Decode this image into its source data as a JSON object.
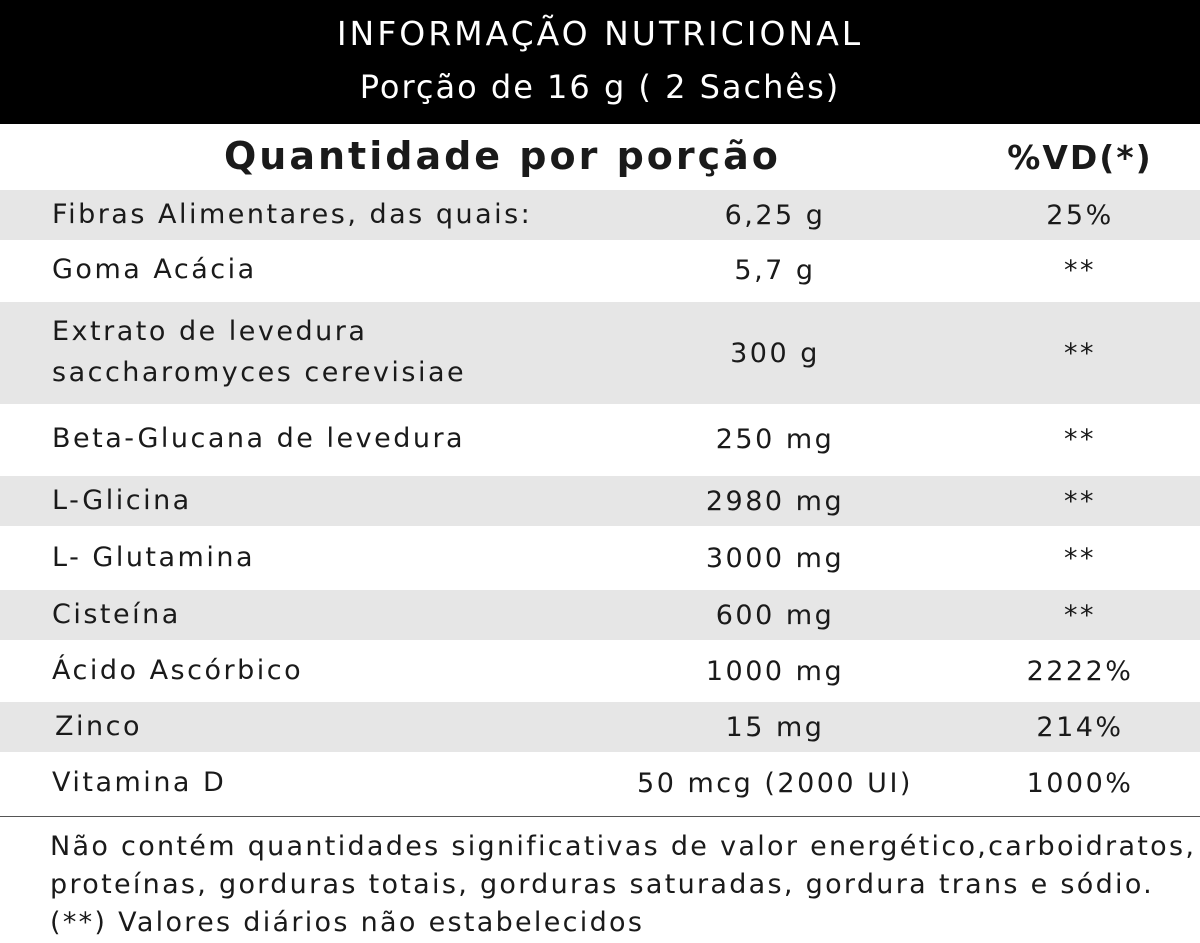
{
  "header": {
    "title": "INFORMAÇÃO NUTRICIONAL",
    "serving": "Porção de 16 g ( 2 Sachês)"
  },
  "columns": {
    "quantity": "Quantidade por porção",
    "daily_value": "%VD(*)"
  },
  "rows": [
    {
      "name": "Fibras Alimentares, das quais:",
      "amount": "6,25 g",
      "dv": "25%"
    },
    {
      "name": "Goma Acácia",
      "amount": "5,7 g",
      "dv": "**"
    },
    {
      "name": "Extrato de levedura saccharomyces cerevisiae",
      "name_line1": "Extrato de levedura",
      "name_line2": "saccharomyces cerevisiae",
      "amount": "300 g",
      "dv": "**"
    },
    {
      "name": "Beta-Glucana de levedura",
      "amount": "250 mg",
      "dv": "**"
    },
    {
      "name": "L-Glicina",
      "amount": "2980 mg",
      "dv": "**"
    },
    {
      "name": "L- Glutamina",
      "amount": "3000 mg",
      "dv": "**"
    },
    {
      "name": "Cisteína",
      "amount": "600 mg",
      "dv": "**"
    },
    {
      "name": "Ácido Ascórbico",
      "amount": "1000 mg",
      "dv": "2222%"
    },
    {
      "name": "Zinco",
      "amount": "15 mg",
      "dv": "214%"
    },
    {
      "name": "Vitamina D",
      "amount": "50 mcg (2000 UI)",
      "dv": "1000%"
    }
  ],
  "footer": {
    "line1": "Não contém quantidades significativas de valor energético,carboidratos,",
    "line2": "proteínas, gorduras totais, gorduras saturadas, gordura trans e sódio.",
    "line3": "(**) Valores diários não estabelecidos"
  },
  "colors": {
    "header_bg": "#000000",
    "row_shade": "#e6e6e6",
    "text": "#1a1a1a"
  }
}
